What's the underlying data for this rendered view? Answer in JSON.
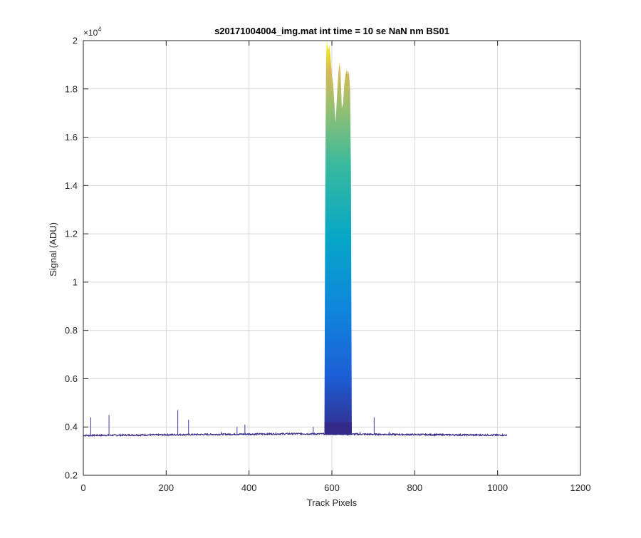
{
  "chart_data": {
    "type": "area",
    "title": "s20171004004_img.mat int time = 10 se  NaN nm BS01",
    "xlabel": "Track Pixels",
    "ylabel": "Signal (ADU)",
    "y_exponent_label": "×10",
    "y_exponent_power": "4",
    "xlim": [
      0,
      1200
    ],
    "ylim": [
      0.2,
      2
    ],
    "xticks": [
      0,
      200,
      400,
      600,
      800,
      1000,
      1200
    ],
    "xtick_labels": [
      "0",
      "200",
      "400",
      "600",
      "800",
      "1000",
      "1200"
    ],
    "yticks": [
      0.2,
      0.4,
      0.6,
      0.8,
      1.0,
      1.2,
      1.4,
      1.6,
      1.8,
      2.0
    ],
    "ytick_labels": [
      "0.2",
      "0.4",
      "0.6",
      "0.8",
      "1",
      "1.2",
      "1.4",
      "1.6",
      "1.8",
      "2"
    ],
    "grid": true,
    "colormap": "parula",
    "baseline": {
      "x_start": 0,
      "x_end": 1023,
      "y_start": 0.365,
      "y_mid": 0.372,
      "y_end": 0.366
    },
    "peak_envelope": [
      [
        582,
        0.39
      ],
      [
        584,
        1.4
      ],
      [
        586,
        1.93
      ],
      [
        588,
        2.0
      ],
      [
        591,
        1.96
      ],
      [
        594,
        1.98
      ],
      [
        597,
        1.93
      ],
      [
        600,
        1.86
      ],
      [
        603,
        1.82
      ],
      [
        606,
        1.74
      ],
      [
        609,
        1.66
      ],
      [
        612,
        1.76
      ],
      [
        615,
        1.85
      ],
      [
        618,
        1.91
      ],
      [
        621,
        1.87
      ],
      [
        624,
        1.72
      ],
      [
        627,
        1.74
      ],
      [
        630,
        1.82
      ],
      [
        633,
        1.86
      ],
      [
        636,
        1.88
      ],
      [
        639,
        1.86
      ],
      [
        641,
        1.87
      ],
      [
        644,
        1.8
      ],
      [
        646,
        1.45
      ],
      [
        648,
        0.39
      ]
    ],
    "spikes": [
      [
        18,
        0.44
      ],
      [
        62,
        0.45
      ],
      [
        228,
        0.47
      ],
      [
        254,
        0.43
      ],
      [
        333,
        0.38
      ],
      [
        371,
        0.4
      ],
      [
        390,
        0.41
      ],
      [
        555,
        0.4
      ],
      [
        668,
        0.38
      ],
      [
        702,
        0.44
      ],
      [
        738,
        0.38
      ],
      [
        826,
        0.37
      ]
    ]
  }
}
